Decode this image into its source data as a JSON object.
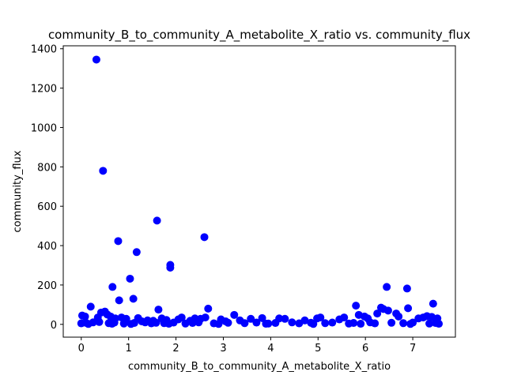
{
  "chart_data": {
    "type": "scatter",
    "title": "community_B_to_community_A_metabolite_X_ratio vs. community_flux",
    "xlabel": "community_B_to_community_A_metabolite_X_ratio",
    "ylabel": "community_flux",
    "xlim": [
      -0.38,
      7.9
    ],
    "ylim": [
      -65,
      1415
    ],
    "xticks": [
      0,
      1,
      2,
      3,
      4,
      5,
      6,
      7
    ],
    "yticks": [
      0,
      200,
      400,
      600,
      800,
      1000,
      1200,
      1400
    ],
    "grid": false,
    "legend": "none",
    "marker_color": "#0000ff",
    "series": [
      {
        "x": [
          0.32,
          0.46,
          1.6,
          2.6,
          0.78,
          1.17,
          1.88,
          1.88,
          1.03,
          0.66,
          1.1,
          0.8,
          0.2,
          1.63,
          2.68,
          3.23,
          5.8,
          5.86,
          6.45,
          6.33,
          6.38,
          6.48,
          6.88,
          6.9,
          7.43,
          6.65,
          0.02,
          0.08,
          0.35,
          0.42,
          0.5,
          0.55,
          0.62,
          0.72,
          0.85,
          0.95,
          1.2,
          1.28,
          1.4,
          1.52,
          1.7,
          1.8,
          2.05,
          2.12,
          2.3,
          2.4,
          2.52,
          2.62,
          2.95,
          3.05,
          3.35,
          3.58,
          3.82,
          4.18,
          4.3,
          4.72,
          4.98,
          5.05,
          5.45,
          5.55,
          5.98,
          6.05,
          6.25,
          6.7,
          7.12,
          7.22,
          7.3,
          7.4,
          7.52,
          0.0,
          0.1,
          0.25,
          0.38,
          0.58,
          0.7,
          0.9,
          1.12,
          1.35,
          1.48,
          1.58,
          1.75,
          1.95,
          2.2,
          2.35,
          2.48,
          2.8,
          3.1,
          3.45,
          3.7,
          3.95,
          4.1,
          4.45,
          4.6,
          4.85,
          5.15,
          5.3,
          5.65,
          5.75,
          6.1,
          6.2,
          6.55,
          6.8,
          7.0,
          7.35,
          7.48,
          0.15,
          0.65,
          1.05,
          1.85,
          2.9,
          3.9,
          4.9,
          5.9,
          6.95,
          7.55
        ],
        "y": [
          1345,
          780,
          527,
          443,
          423,
          367,
          302,
          288,
          232,
          190,
          130,
          122,
          90,
          75,
          80,
          48,
          95,
          48,
          190,
          85,
          78,
          70,
          182,
          82,
          105,
          55,
          45,
          40,
          35,
          60,
          65,
          50,
          40,
          30,
          35,
          28,
          32,
          15,
          20,
          18,
          30,
          22,
          25,
          35,
          18,
          30,
          28,
          35,
          25,
          15,
          20,
          28,
          32,
          30,
          28,
          20,
          30,
          35,
          25,
          35,
          40,
          30,
          55,
          40,
          30,
          35,
          42,
          38,
          30,
          5,
          8,
          10,
          12,
          6,
          9,
          4,
          7,
          10,
          5,
          8,
          6,
          9,
          4,
          7,
          10,
          5,
          8,
          6,
          9,
          4,
          7,
          10,
          5,
          8,
          6,
          9,
          4,
          7,
          10,
          5,
          8,
          6,
          9,
          4,
          7,
          2,
          3,
          2,
          3,
          2,
          3,
          2,
          3,
          2,
          3
        ]
      }
    ]
  }
}
